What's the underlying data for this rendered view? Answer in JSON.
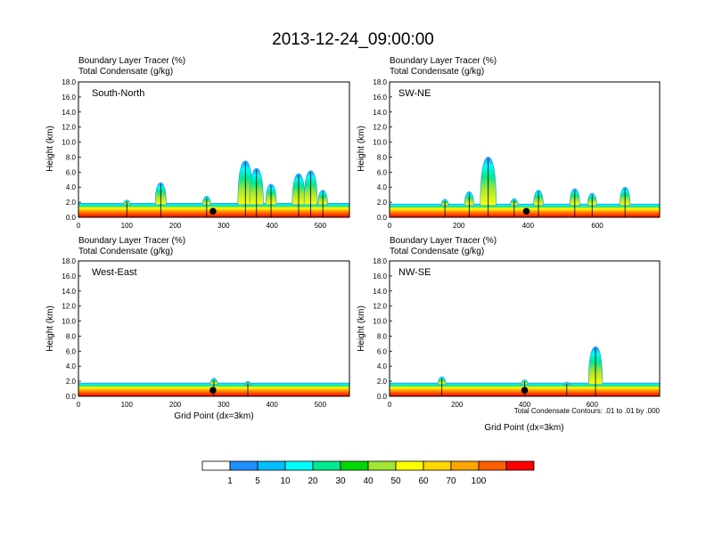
{
  "title": "2013-12-24_09:00:00",
  "panel_subtitle_1": "Boundary Layer Tracer   (%)",
  "panel_subtitle_2": "Total Condensate   (g/kg)",
  "ylabel": "Height (km)",
  "xlabel": "Grid Point (dx=3km)",
  "contour_note": "Total Condensate Contours: .01 to .01 by .000",
  "colorbar": {
    "labels": [
      "1",
      "5",
      "10",
      "20",
      "30",
      "40",
      "50",
      "60",
      "70",
      "100"
    ],
    "colors": [
      "#ffffff",
      "#1e90ff",
      "#00bfff",
      "#00ffff",
      "#00e890",
      "#00d800",
      "#a0e632",
      "#ffff00",
      "#ffd700",
      "#ffa500",
      "#ff6000",
      "#ff0000"
    ]
  },
  "chart_data": [
    {
      "type": "heatmap",
      "panel": "South-North",
      "title": "South-North",
      "xlim": [
        0,
        560
      ],
      "xticks": [
        "0",
        "100",
        "200",
        "300",
        "400",
        "500"
      ],
      "ylim": [
        0,
        18
      ],
      "yticks": [
        "0.0",
        "2.0",
        "4.0",
        "6.0",
        "8.0",
        "10.0",
        "12.0",
        "14.0",
        "16.0",
        "18.0"
      ],
      "base_height_km": 1.9,
      "plumes": [
        {
          "x": 100,
          "top_km": 2.3
        },
        {
          "x": 170,
          "top_km": 4.6
        },
        {
          "x": 265,
          "top_km": 2.8
        },
        {
          "x": 345,
          "top_km": 7.5
        },
        {
          "x": 368,
          "top_km": 6.5
        },
        {
          "x": 398,
          "top_km": 4.4
        },
        {
          "x": 455,
          "top_km": 5.8
        },
        {
          "x": 480,
          "top_km": 6.2
        },
        {
          "x": 505,
          "top_km": 3.6
        }
      ],
      "marker_x": 278
    },
    {
      "type": "heatmap",
      "panel": "SW-NE",
      "title": "SW-NE",
      "xlim": [
        0,
        780
      ],
      "xticks": [
        "0",
        "200",
        "400",
        "600"
      ],
      "ylim": [
        0,
        18
      ],
      "yticks": [
        "0.0",
        "2.0",
        "4.0",
        "6.0",
        "8.0",
        "10.0",
        "12.0",
        "14.0",
        "16.0",
        "18.0"
      ],
      "base_height_km": 1.8,
      "plumes": [
        {
          "x": 160,
          "top_km": 2.4
        },
        {
          "x": 230,
          "top_km": 3.4
        },
        {
          "x": 285,
          "top_km": 8.0
        },
        {
          "x": 360,
          "top_km": 2.5
        },
        {
          "x": 430,
          "top_km": 3.6
        },
        {
          "x": 535,
          "top_km": 3.8
        },
        {
          "x": 585,
          "top_km": 3.2
        },
        {
          "x": 680,
          "top_km": 4.0
        }
      ],
      "marker_x": 395
    },
    {
      "type": "heatmap",
      "panel": "West-East",
      "title": "West-East",
      "xlim": [
        0,
        560
      ],
      "xticks": [
        "0",
        "100",
        "200",
        "300",
        "400",
        "500"
      ],
      "ylim": [
        0,
        18
      ],
      "yticks": [
        "0.0",
        "2.0",
        "4.0",
        "6.0",
        "8.0",
        "10.0",
        "12.0",
        "14.0",
        "16.0",
        "18.0"
      ],
      "base_height_km": 1.8,
      "plumes": [
        {
          "x": 280,
          "top_km": 2.4
        },
        {
          "x": 350,
          "top_km": 2.0
        }
      ],
      "marker_x": 278
    },
    {
      "type": "heatmap",
      "panel": "NW-SE",
      "title": "NW-SE",
      "xlim": [
        0,
        800
      ],
      "xticks": [
        "0",
        "200",
        "400",
        "600"
      ],
      "ylim": [
        0,
        18
      ],
      "yticks": [
        "0.0",
        "2.0",
        "4.0",
        "6.0",
        "8.0",
        "10.0",
        "12.0",
        "14.0",
        "16.0",
        "18.0"
      ],
      "base_height_km": 1.8,
      "plumes": [
        {
          "x": 155,
          "top_km": 2.6
        },
        {
          "x": 400,
          "top_km": 2.2
        },
        {
          "x": 525,
          "top_km": 1.9
        },
        {
          "x": 610,
          "top_km": 6.6
        }
      ],
      "marker_x": 400
    }
  ]
}
